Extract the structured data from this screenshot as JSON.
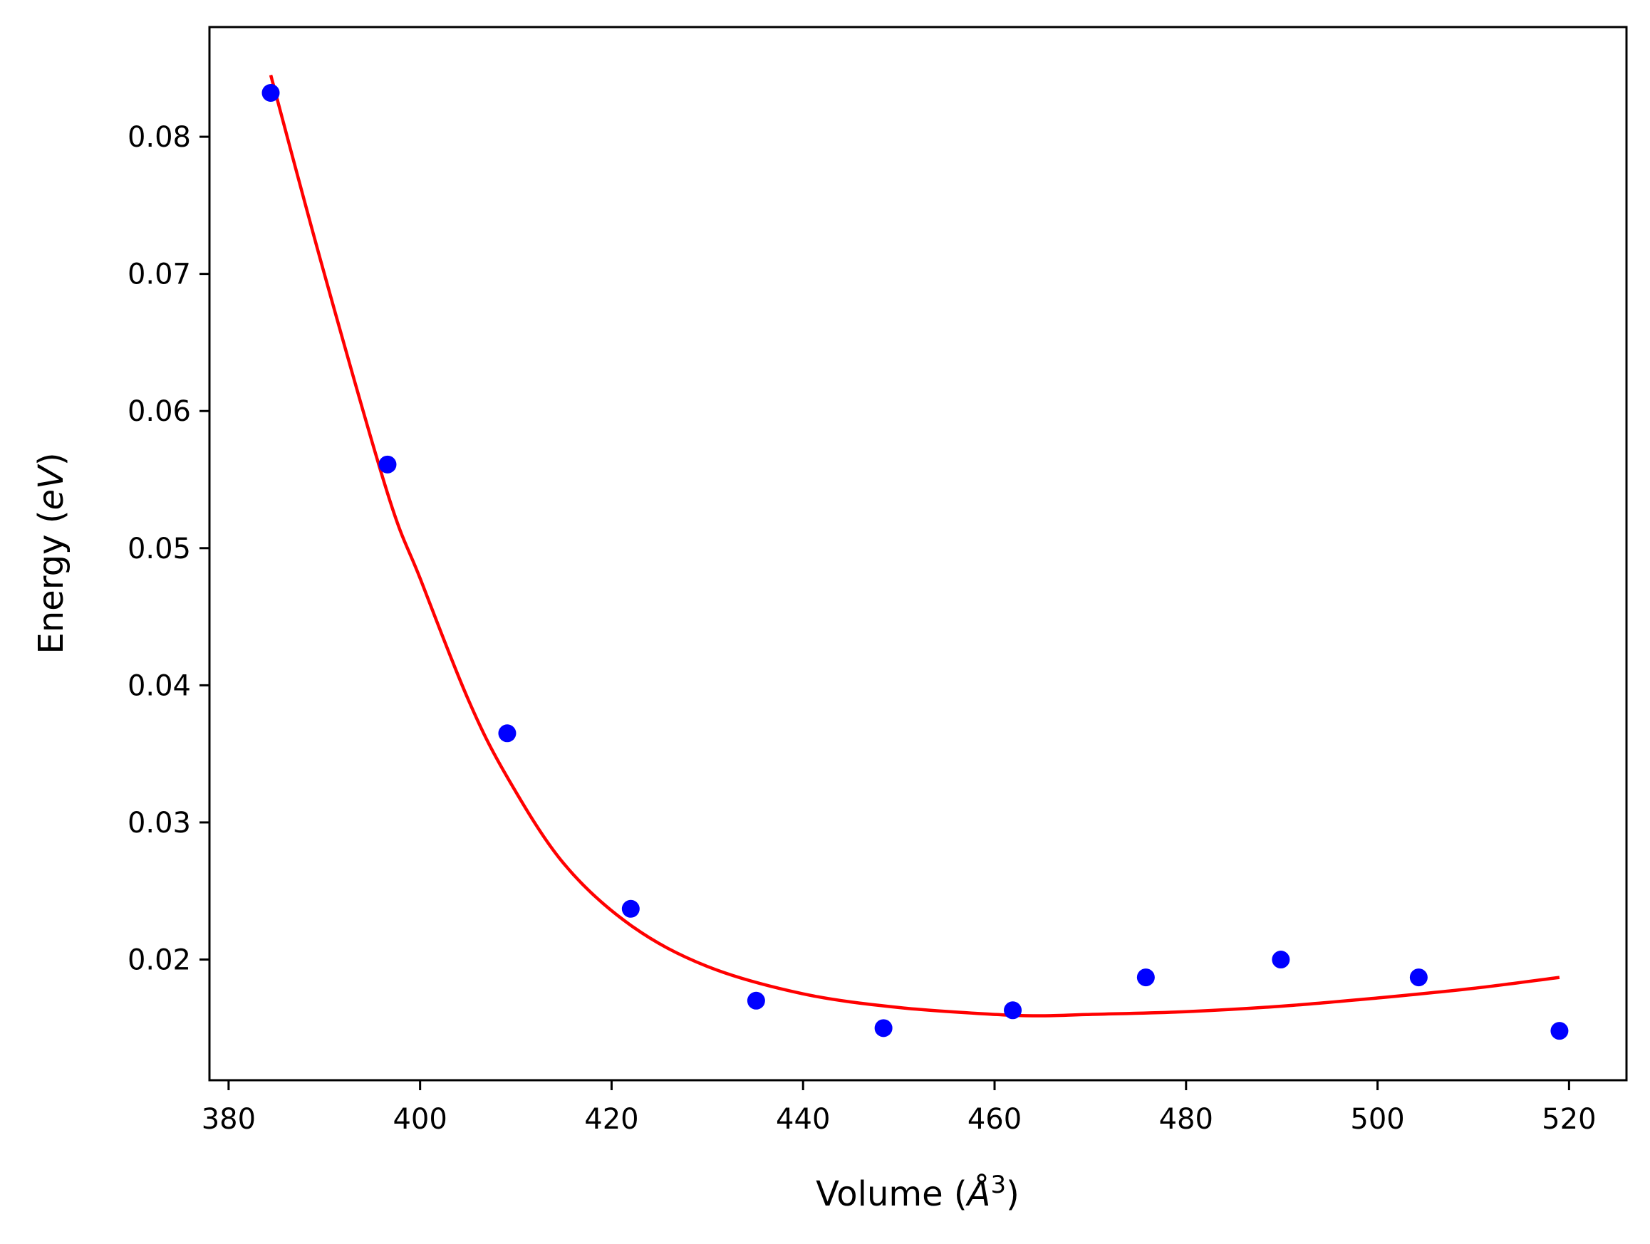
{
  "chart_data": {
    "type": "scatter",
    "title": "",
    "xlabel": {
      "prefix": "Volume (",
      "symbol": "Å",
      "sup": "3",
      "suffix": ")"
    },
    "ylabel": {
      "prefix": "Energy (",
      "symbol": "eV",
      "suffix": ")"
    },
    "xlim": [
      378,
      526
    ],
    "ylim": [
      0.0112,
      0.088
    ],
    "xticks": [
      380,
      400,
      420,
      440,
      460,
      480,
      500,
      520
    ],
    "xtick_labels": [
      "380",
      "400",
      "420",
      "440",
      "460",
      "480",
      "500",
      "520"
    ],
    "yticks": [
      0.02,
      0.03,
      0.04,
      0.05,
      0.06,
      0.07,
      0.08
    ],
    "ytick_labels": [
      "0.02",
      "0.03",
      "0.04",
      "0.05",
      "0.06",
      "0.07",
      "0.08"
    ],
    "grid": false,
    "series": [
      {
        "kind": "points",
        "color": "#0000ff",
        "x": [
          384.4,
          396.6,
          409.1,
          422.0,
          435.1,
          448.4,
          461.9,
          475.8,
          489.9,
          504.3,
          519.0
        ],
        "y": [
          0.0832,
          0.0561,
          0.0365,
          0.0237,
          0.017,
          0.015,
          0.0163,
          0.0187,
          0.02,
          0.0187,
          0.0148
        ]
      },
      {
        "kind": "line",
        "color": "#ff0000",
        "x": [
          384.4,
          390,
          396.6,
          400,
          405,
          409.1,
          415,
          422,
          430,
          440,
          450,
          460,
          465,
          470,
          480,
          490,
          500,
          510,
          519
        ],
        "y": [
          0.0845,
          0.07,
          0.054,
          0.0478,
          0.039,
          0.0333,
          0.027,
          0.0225,
          0.0195,
          0.0175,
          0.0165,
          0.016,
          0.0159,
          0.016,
          0.0162,
          0.0166,
          0.0172,
          0.0179,
          0.0187
        ]
      }
    ]
  }
}
